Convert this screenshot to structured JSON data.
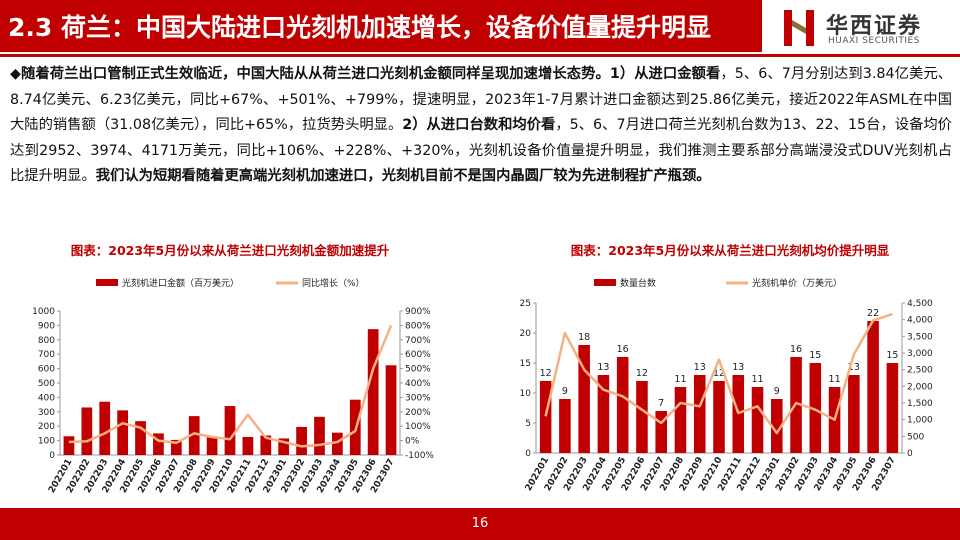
{
  "header": {
    "title": "2.3 荷兰：中国大陆进口光刻机加速增长，设备价值量提升明显",
    "logo_cn": "华西证券",
    "logo_en": "HUAXI SECURITIES"
  },
  "body": {
    "runs": [
      {
        "text": "◆随着荷兰出口管制正式生效临近，中国大陆从从荷兰进口光刻机金额同样呈现加速增长态势。1）从进口金额看",
        "bold": true
      },
      {
        "text": "，5、6、7月分别达到3.84亿美元、8.74亿美元、6.23亿美元，同比+67%、+501%、+799%，提速明显，2023年1-7月累计进口金额达到25.86亿美元，接近2022年ASML在中国大陆的销售额（31.08亿美元），同比+65%，拉货势头明显。",
        "bold": false
      },
      {
        "text": "2）从进口台数和均价看",
        "bold": true
      },
      {
        "text": "，5、6、7月进口荷兰光刻机台数为13、22、15台，设备均价达到2952、3974、4171万美元，同比+106%、+228%、+320%，光刻机设备价值量提升明显，我们推测主要系部分高端浸没式DUV光刻机占比提升明显。",
        "bold": false
      },
      {
        "text": "我们认为短期看随着更高端光刻机加速进口，光刻机目前不是国内晶圆厂较为先进制程扩产瓶颈。",
        "bold": true
      }
    ]
  },
  "chart_data": [
    {
      "type": "bar-line",
      "title": "图表：2023年5月份以来从荷兰进口光刻机金额加速提升",
      "categories": [
        "202201",
        "202202",
        "202203",
        "202204",
        "202205",
        "202206",
        "202207",
        "202208",
        "202209",
        "202210",
        "202211",
        "202212",
        "202301",
        "202302",
        "202303",
        "202304",
        "202305",
        "202306",
        "202307"
      ],
      "series": [
        {
          "name": "光刻机进口金额（百万美元）",
          "type": "bar",
          "color": "#c00000",
          "values": [
            130,
            330,
            370,
            310,
            235,
            150,
            105,
            270,
            130,
            340,
            125,
            135,
            115,
            195,
            265,
            155,
            384,
            874,
            623
          ]
        },
        {
          "name": "同比增长（%）",
          "type": "line",
          "axis": "y2",
          "color": "#f4b183",
          "values": [
            -10,
            -5,
            50,
            120,
            90,
            0,
            -15,
            50,
            25,
            10,
            180,
            20,
            -10,
            -40,
            -30,
            -10,
            67,
            501,
            799
          ]
        }
      ],
      "ylim": [
        0,
        1000
      ],
      "yticks": [
        0,
        100,
        200,
        300,
        400,
        500,
        600,
        700,
        800,
        900,
        1000
      ],
      "y2lim": [
        -100,
        900
      ],
      "y2ticks": [
        {
          "value": -100,
          "label": "-100%"
        },
        {
          "value": 0,
          "label": "0%"
        },
        {
          "value": 100,
          "label": "100%"
        },
        {
          "value": 200,
          "label": "200%"
        },
        {
          "value": 300,
          "label": "300%"
        },
        {
          "value": 400,
          "label": "400%"
        },
        {
          "value": 500,
          "label": "500%"
        },
        {
          "value": 600,
          "label": "600%"
        },
        {
          "value": 700,
          "label": "700%"
        },
        {
          "value": 800,
          "label": "800%"
        },
        {
          "value": 900,
          "label": "900%"
        }
      ]
    },
    {
      "type": "bar-line",
      "title": "图表：2023年5月份以来从荷兰进口光刻机均价提升明显",
      "categories": [
        "202201",
        "202202",
        "202203",
        "202204",
        "202205",
        "202206",
        "202207",
        "202208",
        "202209",
        "202210",
        "202211",
        "202212",
        "202301",
        "202302",
        "202303",
        "202304",
        "202305",
        "202306",
        "202307"
      ],
      "series": [
        {
          "name": "数量台数",
          "type": "bar",
          "color": "#c00000",
          "data_labels": true,
          "values": [
            12,
            9,
            18,
            13,
            16,
            12,
            7,
            11,
            13,
            12,
            13,
            11,
            9,
            16,
            15,
            11,
            13,
            22,
            15
          ]
        },
        {
          "name": "光刻机单价（万美元）",
          "type": "line",
          "axis": "y2",
          "color": "#f4b183",
          "values": [
            1100,
            3600,
            2500,
            1900,
            1700,
            1300,
            900,
            1500,
            1400,
            2800,
            1200,
            1400,
            600,
            1500,
            1300,
            1000,
            2952,
            3974,
            4171
          ]
        }
      ],
      "ylim": [
        0,
        25
      ],
      "yticks": [
        0,
        5,
        10,
        15,
        20,
        25
      ],
      "y2lim": [
        0,
        4500
      ],
      "y2ticks": [
        0,
        500,
        {
          "value": 1000,
          "label": "1,000"
        },
        {
          "value": 1500,
          "label": "1,500"
        },
        {
          "value": 2000,
          "label": "2,000"
        },
        {
          "value": 2500,
          "label": "2,500"
        },
        {
          "value": 3000,
          "label": "3,000"
        },
        {
          "value": 3500,
          "label": "3,500"
        },
        {
          "value": 4000,
          "label": "4,000"
        },
        {
          "value": 4500,
          "label": "4,500"
        }
      ]
    }
  ],
  "page_number": "16"
}
